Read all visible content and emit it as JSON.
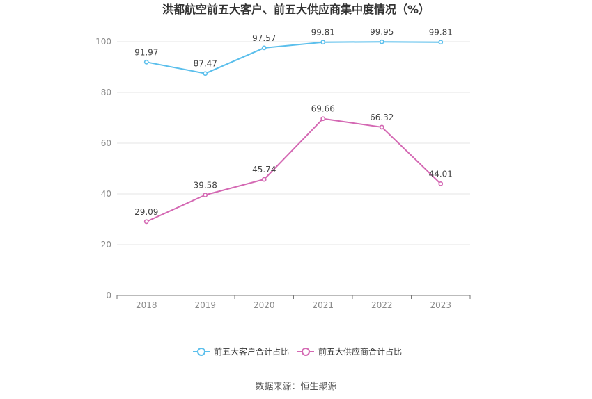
{
  "chart_data": {
    "type": "line",
    "title": "洪都航空前五大客户、前五大供应商集中度情况（%）",
    "categories": [
      "2018",
      "2019",
      "2020",
      "2021",
      "2022",
      "2023"
    ],
    "series": [
      {
        "name": "前五大客户合计占比",
        "color": "#5bbfec",
        "values": [
          91.97,
          87.47,
          97.57,
          99.81,
          99.95,
          99.81
        ],
        "labels": [
          "91.97",
          "87.47",
          "97.57",
          "99.81",
          "99.95",
          "99.81"
        ]
      },
      {
        "name": "前五大供应商合计占比",
        "color": "#d468b3",
        "values": [
          29.09,
          39.58,
          45.74,
          69.66,
          66.32,
          44.01
        ],
        "labels": [
          "29.09",
          "39.58",
          "45.74",
          "69.66",
          "66.32",
          "44.01"
        ]
      }
    ],
    "yticks": [
      "0",
      "20",
      "40",
      "60",
      "80",
      "100"
    ],
    "ylim": [
      0,
      100
    ],
    "grid": true,
    "legend_position": "bottom",
    "source": "数据来源：恒生聚源"
  }
}
